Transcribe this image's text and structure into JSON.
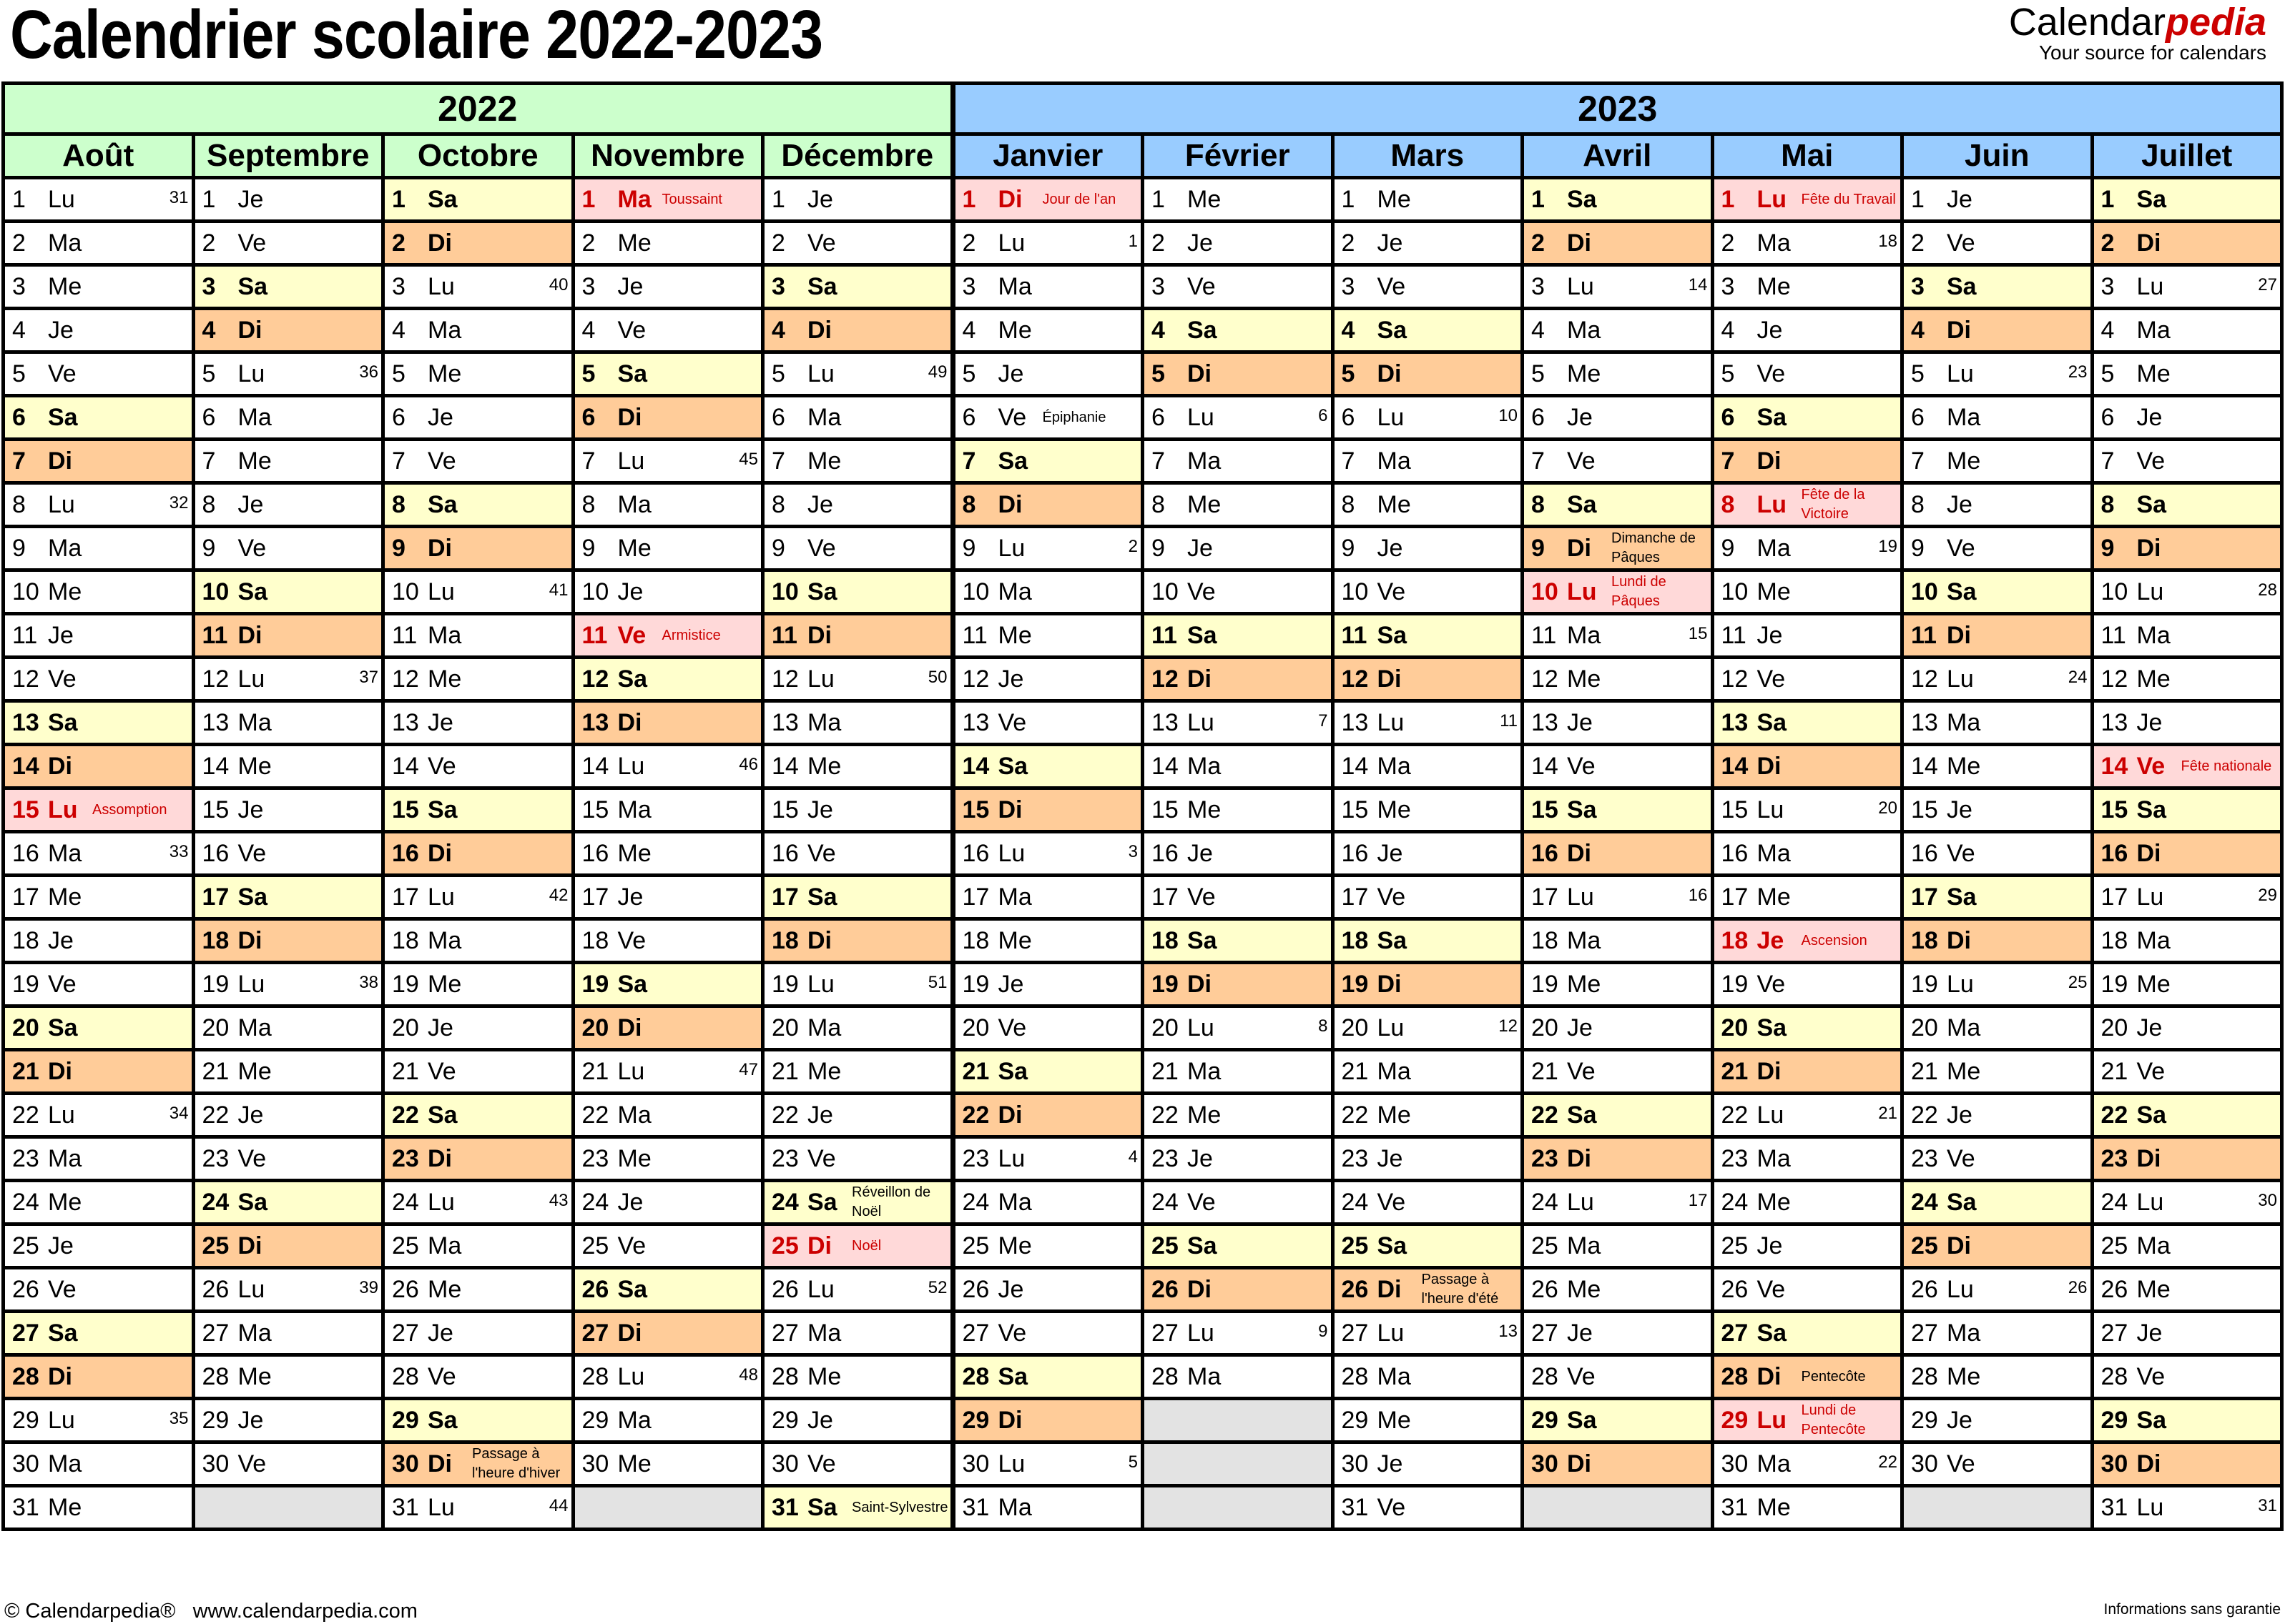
{
  "title": "Calendrier scolaire 2022-2023",
  "logo": {
    "brand_regular": "Calendar",
    "brand_accent": "pedia",
    "tagline": "Your source for calendars"
  },
  "colors": {
    "header_2022": "#CCFFCC",
    "header_2023": "#99CCFF",
    "saturday": "#FFFFCC",
    "sunday": "#FFCC99",
    "holiday_bg": "#FFD9D9",
    "holiday_text": "#CC0000",
    "empty": "#E3E3E3",
    "brand_red": "#CC0000"
  },
  "years": [
    {
      "label": "2022",
      "months": 5
    },
    {
      "label": "2023",
      "months": 7
    }
  ],
  "weekday_abbr": [
    "Lu",
    "Ma",
    "Me",
    "Je",
    "Ve",
    "Sa",
    "Di"
  ],
  "months": [
    {
      "name": "Août",
      "year": "2022",
      "days": 31,
      "first_weekday": 0,
      "weeks": {
        "1": 31,
        "8": 32,
        "16": 33,
        "22": 34,
        "29": 35
      },
      "holidays": {
        "15": "Assomption"
      },
      "notes": {}
    },
    {
      "name": "Septembre",
      "year": "2022",
      "days": 30,
      "first_weekday": 3,
      "weeks": {
        "5": 36,
        "12": 37,
        "19": 38,
        "26": 39
      },
      "holidays": {},
      "notes": {}
    },
    {
      "name": "Octobre",
      "year": "2022",
      "days": 31,
      "first_weekday": 5,
      "weeks": {
        "3": 40,
        "10": 41,
        "17": 42,
        "24": 43,
        "31": 44
      },
      "holidays": {},
      "notes": {
        "30": "Passage à l'heure d'hiver"
      }
    },
    {
      "name": "Novembre",
      "year": "2022",
      "days": 30,
      "first_weekday": 1,
      "weeks": {
        "7": 45,
        "14": 46,
        "21": 47,
        "28": 48
      },
      "holidays": {
        "1": "Toussaint",
        "11": "Armistice"
      },
      "notes": {}
    },
    {
      "name": "Décembre",
      "year": "2022",
      "days": 31,
      "first_weekday": 3,
      "weeks": {
        "5": 49,
        "12": 50,
        "19": 51,
        "26": 52
      },
      "holidays": {
        "25": "Noël"
      },
      "notes": {
        "24": "Réveillon de Noël",
        "31": "Saint-Sylvestre"
      }
    },
    {
      "name": "Janvier",
      "year": "2023",
      "days": 31,
      "first_weekday": 6,
      "weeks": {
        "2": 1,
        "9": 2,
        "16": 3,
        "23": 4,
        "30": 5
      },
      "holidays": {
        "1": "Jour de l'an"
      },
      "notes": {
        "6": "Épiphanie"
      }
    },
    {
      "name": "Février",
      "year": "2023",
      "days": 28,
      "first_weekday": 2,
      "weeks": {
        "6": 6,
        "13": 7,
        "20": 8,
        "27": 9
      },
      "holidays": {},
      "notes": {}
    },
    {
      "name": "Mars",
      "year": "2023",
      "days": 31,
      "first_weekday": 2,
      "weeks": {
        "6": 10,
        "13": 11,
        "20": 12,
        "27": 13
      },
      "holidays": {},
      "notes": {
        "26": "Passage à l'heure d'été"
      }
    },
    {
      "name": "Avril",
      "year": "2023",
      "days": 30,
      "first_weekday": 5,
      "weeks": {
        "3": 14,
        "11": 15,
        "17": 16,
        "24": 17
      },
      "holidays": {
        "10": "Lundi de Pâques"
      },
      "notes": {
        "9": "Dimanche de Pâques"
      }
    },
    {
      "name": "Mai",
      "year": "2023",
      "days": 31,
      "first_weekday": 0,
      "weeks": {
        "2": 18,
        "9": 19,
        "15": 20,
        "22": 21,
        "30": 22
      },
      "holidays": {
        "1": "Fête du Travail",
        "8": "Fête de la Victoire",
        "18": "Ascension",
        "29": "Lundi de Pentecôte"
      },
      "notes": {
        "28": "Pentecôte"
      }
    },
    {
      "name": "Juin",
      "year": "2023",
      "days": 30,
      "first_weekday": 3,
      "weeks": {
        "5": 23,
        "12": 24,
        "19": 25,
        "26": 26
      },
      "holidays": {},
      "notes": {}
    },
    {
      "name": "Juillet",
      "year": "2023",
      "days": 31,
      "first_weekday": 5,
      "weeks": {
        "3": 27,
        "10": 28,
        "17": 29,
        "24": 30,
        "31": 31
      },
      "holidays": {
        "14": "Fête nationale"
      },
      "notes": {}
    }
  ],
  "footer": {
    "copyright": "© Calendarpedia®   www.calendarpedia.com",
    "disclaimer": "Informations sans garantie"
  }
}
